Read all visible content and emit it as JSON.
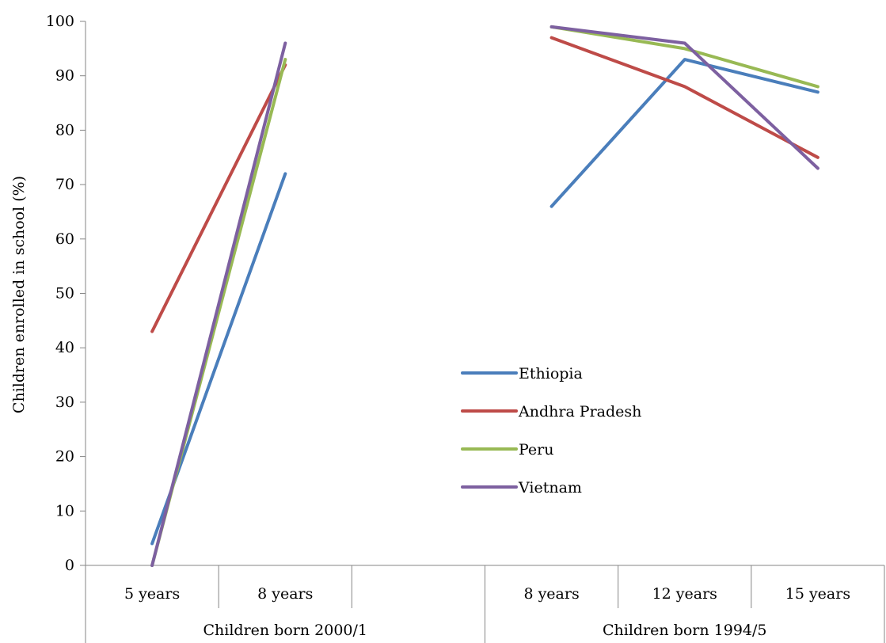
{
  "chart_data": {
    "type": "line",
    "ylabel": "Children enrolled in school (%)",
    "ylim": [
      0,
      100
    ],
    "yticks": [
      0,
      10,
      20,
      30,
      40,
      50,
      60,
      70,
      80,
      90,
      100
    ],
    "grid": false,
    "legend_position": "center-right",
    "categories": [
      "5 years",
      "8 years",
      "",
      "8 years",
      "12 years",
      "15 years"
    ],
    "groups": [
      {
        "label": "Children born 2000/1",
        "categories": [
          "5 years",
          "8 years",
          ""
        ]
      },
      {
        "label": "Children born 1994/5",
        "categories": [
          "8 years",
          "12 years",
          "15 years"
        ]
      }
    ],
    "series": [
      {
        "name": "Ethiopia",
        "color": "#4a7ebb",
        "values": [
          4,
          72,
          null,
          66,
          93,
          87
        ]
      },
      {
        "name": "Andhra Pradesh",
        "color": "#be4b48",
        "values": [
          43,
          92,
          null,
          97,
          88,
          75
        ]
      },
      {
        "name": "Peru",
        "color": "#98b954",
        "values": [
          0,
          93,
          null,
          99,
          95,
          88
        ]
      },
      {
        "name": "Vietnam",
        "color": "#7d60a0",
        "values": [
          0,
          96,
          null,
          99,
          96,
          73
        ]
      }
    ]
  }
}
